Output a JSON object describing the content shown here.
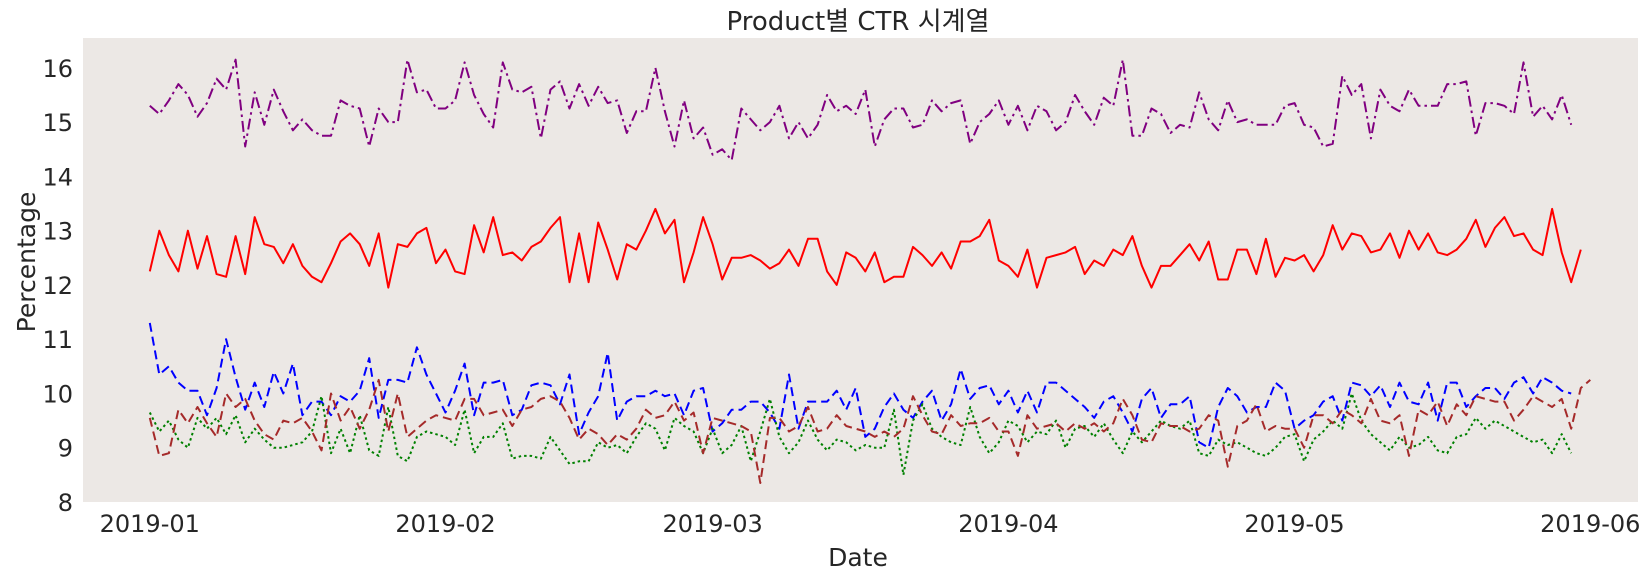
{
  "chart_data": {
    "type": "line",
    "title": "Product별 CTR 시계열",
    "xlabel": "Date",
    "ylabel": "Percentage",
    "x_start": "2019-01-01",
    "x_end": "2019-05-31",
    "xlim": [
      "2018-12-25",
      "2019-06-06"
    ],
    "ylim": [
      8,
      16.55
    ],
    "xticks": [
      {
        "date": "2019-01-01",
        "label": "2019-01"
      },
      {
        "date": "2019-02-01",
        "label": "2019-02"
      },
      {
        "date": "2019-03-01",
        "label": "2019-03"
      },
      {
        "date": "2019-04-01",
        "label": "2019-04"
      },
      {
        "date": "2019-05-01",
        "label": "2019-05"
      },
      {
        "date": "2019-06-01",
        "label": "2019-06"
      }
    ],
    "yticks": [
      8,
      9,
      10,
      11,
      12,
      13,
      14,
      15,
      16
    ],
    "grid": false,
    "plot_background": "#ece8e5",
    "series": [
      {
        "color": "#800080",
        "dash": "dashdot",
        "values": [
          15.3,
          15.15,
          15.4,
          15.7,
          15.5,
          15.1,
          15.35,
          15.8,
          15.6,
          16.15,
          14.55,
          15.55,
          14.95,
          15.6,
          15.2,
          14.85,
          15.05,
          14.85,
          14.75,
          14.75,
          15.4,
          15.3,
          15.25,
          14.55,
          15.25,
          15.0,
          15.0,
          16.15,
          15.55,
          15.6,
          15.25,
          15.25,
          15.4,
          16.1,
          15.5,
          15.15,
          14.9,
          16.1,
          15.6,
          15.55,
          15.65,
          14.7,
          15.6,
          15.75,
          15.25,
          15.7,
          15.3,
          15.65,
          15.35,
          15.4,
          14.8,
          15.2,
          15.2,
          16.0,
          15.2,
          14.55,
          15.4,
          14.7,
          14.9,
          14.4,
          14.5,
          14.3,
          15.25,
          15.05,
          14.85,
          15.0,
          15.3,
          14.7,
          15.0,
          14.7,
          14.95,
          15.5,
          15.2,
          15.3,
          15.15,
          15.6,
          14.55,
          15.05,
          15.25,
          15.25,
          14.9,
          14.95,
          15.4,
          15.2,
          15.35,
          15.4,
          14.6,
          15.0,
          15.15,
          15.4,
          14.95,
          15.3,
          14.85,
          15.3,
          15.2,
          14.85,
          15.0,
          15.5,
          15.2,
          14.95,
          15.45,
          15.3,
          16.15,
          14.75,
          14.75,
          15.25,
          15.15,
          14.8,
          14.95,
          14.9,
          15.55,
          15.05,
          14.85,
          15.4,
          15.0,
          15.05,
          14.95,
          14.95,
          14.95,
          15.3,
          15.35,
          14.95,
          14.9,
          14.55,
          14.6,
          15.85,
          15.5,
          15.7,
          14.7,
          15.6,
          15.3,
          15.2,
          15.6,
          15.3,
          15.3,
          15.3,
          15.7,
          15.7,
          15.75,
          14.75,
          15.35,
          15.35,
          15.3,
          15.15,
          16.1,
          15.1,
          15.3,
          15.05,
          15.5,
          14.95
        ]
      },
      {
        "color": "#ff0000",
        "dash": "solid",
        "values": [
          12.25,
          13.0,
          12.55,
          12.25,
          13.0,
          12.3,
          12.9,
          12.2,
          12.15,
          12.9,
          12.2,
          13.25,
          12.75,
          12.7,
          12.4,
          12.75,
          12.35,
          12.15,
          12.05,
          12.4,
          12.8,
          12.95,
          12.75,
          12.35,
          12.95,
          11.95,
          12.75,
          12.7,
          12.95,
          13.05,
          12.4,
          12.65,
          12.25,
          12.2,
          13.1,
          12.6,
          13.25,
          12.55,
          12.6,
          12.45,
          12.7,
          12.8,
          13.05,
          13.25,
          12.05,
          12.95,
          12.05,
          13.15,
          12.65,
          12.1,
          12.75,
          12.65,
          13.0,
          13.4,
          12.95,
          13.2,
          12.05,
          12.6,
          13.25,
          12.75,
          12.1,
          12.5,
          12.5,
          12.55,
          12.45,
          12.3,
          12.4,
          12.65,
          12.35,
          12.85,
          12.85,
          12.25,
          12.0,
          12.6,
          12.5,
          12.25,
          12.6,
          12.05,
          12.15,
          12.15,
          12.7,
          12.55,
          12.35,
          12.6,
          12.3,
          12.8,
          12.8,
          12.9,
          13.2,
          12.45,
          12.35,
          12.15,
          12.65,
          11.95,
          12.5,
          12.55,
          12.6,
          12.7,
          12.2,
          12.45,
          12.35,
          12.65,
          12.55,
          12.9,
          12.35,
          11.95,
          12.35,
          12.35,
          12.55,
          12.75,
          12.45,
          12.8,
          12.1,
          12.1,
          12.65,
          12.65,
          12.2,
          12.85,
          12.15,
          12.5,
          12.45,
          12.55,
          12.25,
          12.55,
          13.1,
          12.65,
          12.95,
          12.9,
          12.6,
          12.65,
          12.95,
          12.5,
          13.0,
          12.65,
          12.95,
          12.6,
          12.55,
          12.65,
          12.85,
          13.2,
          12.7,
          13.05,
          13.25,
          12.9,
          12.95,
          12.65,
          12.55,
          13.4,
          12.6,
          12.05,
          12.65
        ]
      },
      {
        "color": "#0000ff",
        "dash": "dashed",
        "values": [
          11.3,
          10.35,
          10.5,
          10.2,
          10.05,
          10.05,
          9.6,
          10.1,
          11.0,
          10.3,
          9.7,
          10.2,
          9.75,
          10.4,
          10.0,
          10.55,
          9.6,
          9.85,
          9.85,
          9.6,
          9.95,
          9.85,
          10.05,
          10.65,
          9.55,
          10.25,
          10.25,
          10.2,
          10.85,
          10.35,
          10.0,
          9.65,
          10.05,
          10.55,
          9.6,
          10.2,
          10.2,
          10.25,
          9.6,
          9.7,
          10.15,
          10.2,
          10.15,
          9.8,
          10.35,
          9.25,
          9.65,
          9.95,
          10.75,
          9.5,
          9.85,
          9.95,
          9.95,
          10.05,
          9.95,
          10.0,
          9.6,
          10.05,
          10.1,
          9.3,
          9.45,
          9.7,
          9.7,
          9.85,
          9.85,
          9.65,
          9.35,
          10.35,
          9.35,
          9.85,
          9.85,
          9.85,
          10.05,
          9.7,
          10.1,
          9.2,
          9.35,
          9.75,
          10.0,
          9.7,
          9.55,
          9.85,
          10.05,
          9.5,
          9.8,
          10.45,
          9.9,
          10.1,
          10.15,
          9.8,
          10.05,
          9.65,
          10.05,
          9.65,
          10.2,
          10.2,
          10.05,
          9.9,
          9.75,
          9.55,
          9.85,
          9.95,
          9.65,
          9.3,
          9.9,
          10.1,
          9.55,
          9.8,
          9.8,
          9.95,
          9.1,
          9.0,
          9.75,
          10.1,
          9.95,
          9.65,
          9.75,
          9.75,
          10.2,
          10.05,
          9.35,
          9.5,
          9.6,
          9.85,
          9.95,
          9.5,
          10.2,
          10.15,
          9.95,
          10.15,
          9.75,
          10.2,
          9.85,
          9.8,
          10.2,
          9.5,
          10.2,
          10.2,
          9.75,
          9.95,
          10.1,
          10.1,
          9.9,
          10.2,
          10.3,
          10.0,
          10.3,
          10.2,
          10.05,
          10.0
        ]
      },
      {
        "color": "#008000",
        "dash": "dotted",
        "values": [
          9.65,
          9.3,
          9.5,
          9.15,
          9.0,
          9.55,
          9.35,
          9.55,
          9.25,
          9.6,
          9.1,
          9.35,
          9.15,
          9.0,
          9.0,
          9.05,
          9.1,
          9.3,
          9.95,
          8.9,
          9.35,
          8.9,
          9.6,
          8.95,
          8.85,
          9.75,
          8.85,
          8.75,
          9.2,
          9.3,
          9.25,
          9.2,
          9.05,
          9.7,
          8.9,
          9.2,
          9.2,
          9.45,
          8.8,
          8.85,
          8.85,
          8.8,
          9.2,
          8.95,
          8.7,
          8.75,
          8.75,
          9.1,
          9.0,
          9.05,
          8.9,
          9.2,
          9.45,
          9.35,
          8.95,
          9.55,
          9.4,
          9.3,
          8.9,
          9.35,
          8.9,
          9.05,
          9.4,
          8.75,
          9.3,
          9.9,
          9.2,
          8.9,
          9.1,
          9.5,
          9.15,
          8.95,
          9.15,
          9.1,
          8.95,
          9.05,
          9.0,
          9.0,
          9.7,
          8.5,
          9.5,
          9.8,
          9.35,
          9.2,
          9.1,
          9.05,
          9.75,
          9.2,
          8.9,
          9.1,
          9.5,
          9.4,
          9.1,
          9.3,
          9.25,
          9.5,
          9.0,
          9.35,
          9.4,
          9.2,
          9.45,
          9.15,
          8.9,
          9.3,
          9.1,
          9.3,
          9.5,
          9.4,
          9.35,
          9.5,
          8.9,
          8.85,
          9.15,
          9.05,
          9.1,
          9.0,
          8.9,
          8.85,
          9.0,
          9.2,
          9.25,
          8.75,
          9.15,
          9.3,
          9.5,
          9.35,
          10.0,
          9.5,
          9.25,
          9.1,
          8.95,
          9.2,
          9.0,
          9.05,
          9.2,
          8.95,
          8.9,
          9.2,
          9.25,
          9.55,
          9.35,
          9.5,
          9.4,
          9.3,
          9.2,
          9.1,
          9.15,
          8.9,
          9.25,
          8.9
        ]
      },
      {
        "color": "#a52a2a",
        "dash": "dashed",
        "values": [
          9.55,
          8.85,
          8.9,
          9.7,
          9.45,
          9.75,
          9.45,
          9.2,
          10.0,
          9.75,
          9.9,
          9.5,
          9.25,
          9.15,
          9.5,
          9.45,
          9.55,
          9.3,
          8.95,
          10.0,
          9.5,
          9.75,
          9.35,
          9.7,
          10.25,
          9.3,
          10.0,
          9.2,
          9.35,
          9.5,
          9.6,
          9.55,
          9.5,
          9.9,
          9.9,
          9.6,
          9.65,
          9.7,
          9.4,
          9.7,
          9.75,
          9.9,
          9.95,
          9.85,
          9.55,
          9.15,
          9.35,
          9.25,
          9.05,
          9.25,
          9.15,
          9.35,
          9.7,
          9.55,
          9.6,
          9.85,
          9.5,
          9.65,
          8.9,
          9.55,
          9.5,
          9.45,
          9.4,
          9.3,
          8.35,
          9.55,
          9.55,
          9.3,
          9.4,
          9.75,
          9.3,
          9.35,
          9.6,
          9.4,
          9.35,
          9.3,
          9.2,
          9.3,
          9.2,
          9.35,
          9.95,
          9.6,
          9.3,
          9.25,
          9.6,
          9.4,
          9.45,
          9.45,
          9.55,
          9.3,
          9.3,
          8.85,
          9.6,
          9.35,
          9.4,
          9.45,
          9.3,
          9.45,
          9.35,
          9.45,
          9.3,
          9.45,
          9.9,
          9.6,
          9.15,
          9.1,
          9.45,
          9.4,
          9.4,
          9.3,
          9.35,
          9.6,
          9.5,
          8.65,
          9.4,
          9.5,
          9.8,
          9.3,
          9.4,
          9.35,
          9.35,
          9.0,
          9.6,
          9.6,
          9.45,
          9.7,
          9.6,
          9.45,
          9.9,
          9.5,
          9.45,
          9.6,
          8.85,
          9.7,
          9.6,
          9.85,
          9.4,
          9.8,
          9.6,
          9.95,
          9.9,
          9.85,
          9.85,
          9.5,
          9.7,
          9.95,
          9.85,
          9.75,
          9.9,
          9.35,
          10.1,
          10.25
        ]
      }
    ]
  }
}
